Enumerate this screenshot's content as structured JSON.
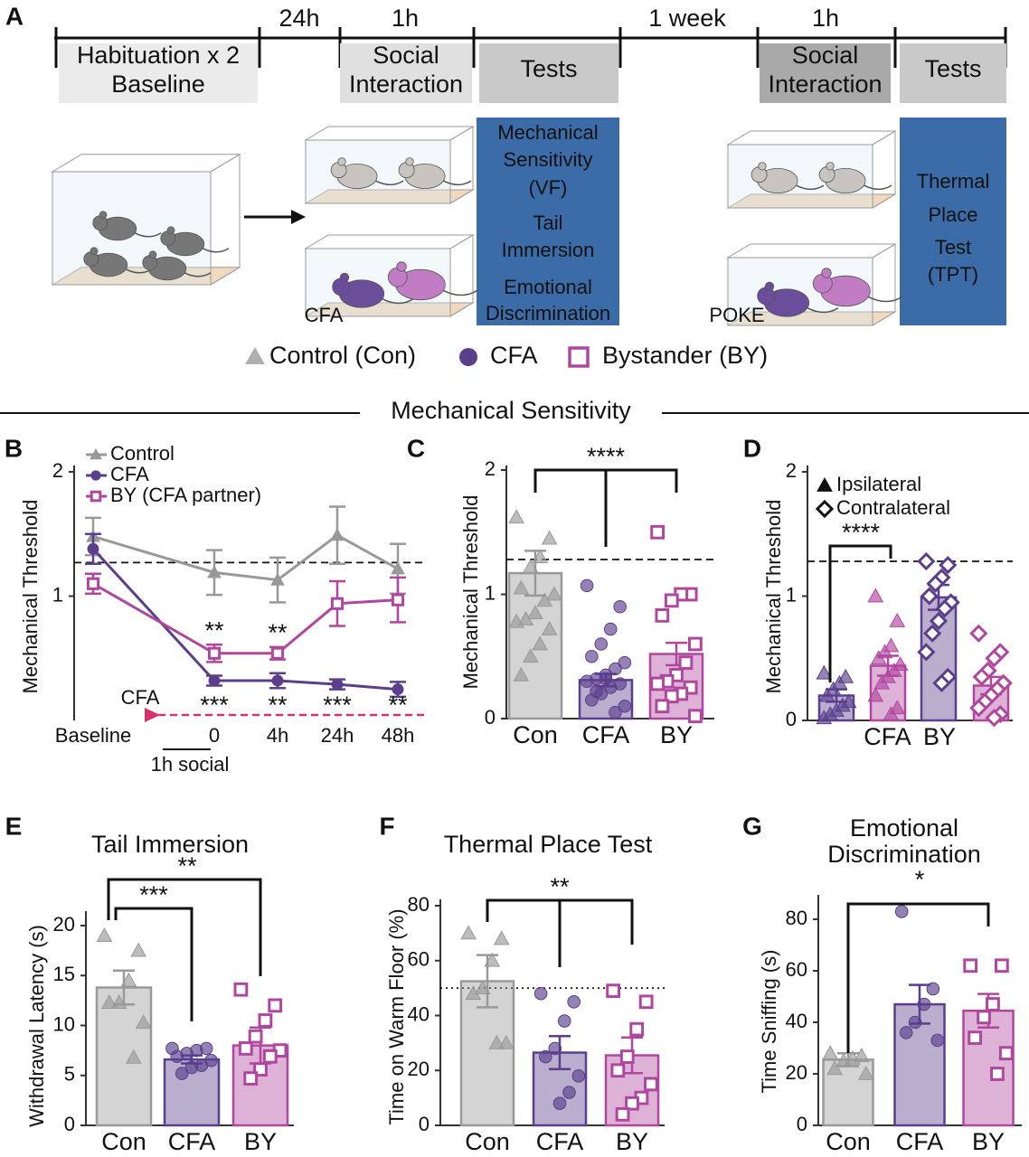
{
  "panel_a": {
    "label": "A",
    "intervals": [
      "24h",
      "1h",
      "1 week",
      "1h"
    ],
    "phases": [
      [
        "Habituation x 2",
        "Baseline"
      ],
      [
        "Social",
        "Interaction"
      ],
      [
        "Tests"
      ],
      [
        "Social",
        "Interaction"
      ],
      [
        "Tests"
      ]
    ],
    "tests_1": [
      "Mechanical",
      "Sensitivity",
      "(VF)",
      "Tail",
      "Immersion",
      "Emotional",
      "Discrimination"
    ],
    "tests_2": [
      "Thermal",
      "Place",
      "Test",
      "(TPT)"
    ],
    "cage_labels": [
      "CFA",
      "POKE"
    ],
    "legend": [
      "Control (Con)",
      "CFA",
      "Bystander (BY)"
    ]
  },
  "section_title": "Mechanical Sensitivity",
  "chart_data": [
    {
      "panel": "B",
      "type": "line",
      "ylabel": "Mechanical Threshold",
      "categories": [
        "Baseline",
        "0",
        "4h",
        "24h",
        "48h"
      ],
      "ylim": [
        0,
        2
      ],
      "yticks": [
        1,
        2
      ],
      "reference_line": 1.27,
      "injection_label": "CFA",
      "social_label": "1h social",
      "series": [
        {
          "name": "Control",
          "color": "#999999",
          "marker": "triangle",
          "values": [
            1.48,
            1.19,
            1.13,
            1.49,
            1.22
          ],
          "errors": [
            0.15,
            0.18,
            0.18,
            0.23,
            0.2
          ]
        },
        {
          "name": "CFA",
          "color": "#5b3f8c",
          "marker": "circle",
          "values": [
            1.38,
            0.32,
            0.32,
            0.29,
            0.25
          ],
          "errors": [
            0.12,
            0.04,
            0.06,
            0.04,
            0.06
          ],
          "stars": [
            null,
            "***",
            "**",
            "***",
            "**"
          ]
        },
        {
          "name": "BY (CFA partner)",
          "color": "#b0479f",
          "marker": "square",
          "values": [
            1.1,
            0.54,
            0.54,
            0.94,
            0.97
          ],
          "errors": [
            0.08,
            0.07,
            0.05,
            0.18,
            0.18
          ],
          "stars": [
            null,
            "**",
            "**",
            null,
            null
          ]
        }
      ]
    },
    {
      "panel": "C",
      "type": "bar",
      "ylabel": "Mechanical Threshold",
      "categories": [
        "Con",
        "CFA",
        "BY"
      ],
      "colors": [
        "#999999",
        "#5b3f8c",
        "#b0479f"
      ],
      "markers": [
        "triangle",
        "circle",
        "square"
      ],
      "values": [
        1.17,
        0.31,
        0.52
      ],
      "errors": [
        0.18,
        0.05,
        0.09
      ],
      "points": [
        [
          1.62,
          1.45,
          1.3,
          1.22,
          1.05,
          1.0,
          0.95,
          0.85,
          0.8,
          0.78,
          0.72,
          0.6,
          0.5,
          0.35
        ],
        [
          1.07,
          0.9,
          0.72,
          0.6,
          0.5,
          0.45,
          0.4,
          0.35,
          0.32,
          0.3,
          0.28,
          0.25,
          0.2,
          0.15,
          0.1,
          0.05,
          0.32,
          0.22
        ],
        [
          1.5,
          1.0,
          1.0,
          0.95,
          0.83,
          0.6,
          0.45,
          0.35,
          0.3,
          0.28,
          0.25,
          0.2,
          0.18,
          0.1,
          0.02
        ]
      ],
      "ylim": [
        0,
        2
      ],
      "yticks": [
        0,
        1,
        2
      ],
      "reference_line": 1.28,
      "significance": [
        "****"
      ]
    },
    {
      "panel": "D",
      "type": "grouped_bar",
      "ylabel": "Mechanical Threshold",
      "categories": [
        "CFA",
        "BY"
      ],
      "colors": [
        "#5b3f8c",
        "#b0479f"
      ],
      "series": [
        {
          "name": "Ipsilateral",
          "marker": "triangle",
          "values": [
            0.2,
            0.44
          ],
          "errors": [
            0.05,
            0.08
          ],
          "points": [
            [
              0.38,
              0.35,
              0.3,
              0.25,
              0.2,
              0.15,
              0.12,
              0.08,
              0.05,
              0.02
            ],
            [
              1.0,
              0.8,
              0.6,
              0.55,
              0.5,
              0.45,
              0.4,
              0.35,
              0.3,
              0.2,
              0.1,
              0.05
            ]
          ]
        },
        {
          "name": "Contralateral",
          "marker": "diamond",
          "values": [
            0.99,
            0.28
          ],
          "errors": [
            0.1,
            0.07
          ],
          "points": [
            [
              1.28,
              1.25,
              1.15,
              1.1,
              1.0,
              0.95,
              0.9,
              0.8,
              0.7,
              0.55,
              0.35,
              0.3
            ],
            [
              0.7,
              0.55,
              0.5,
              0.4,
              0.35,
              0.3,
              0.25,
              0.2,
              0.15,
              0.1,
              0.05,
              0.02
            ]
          ]
        }
      ],
      "ylim": [
        0,
        2
      ],
      "yticks": [
        0,
        1,
        2
      ],
      "reference_line": 1.28,
      "significance": [
        "****"
      ]
    },
    {
      "panel": "E",
      "type": "bar",
      "title": [
        "Tail Immersion"
      ],
      "ylabel": "Withdrawal Latency (s)",
      "categories": [
        "Con",
        "CFA",
        "BY"
      ],
      "colors": [
        "#999999",
        "#5b3f8c",
        "#b0479f"
      ],
      "markers": [
        "triangle",
        "circle",
        "square"
      ],
      "values": [
        13.8,
        6.6,
        8.0
      ],
      "errors": [
        1.7,
        0.4,
        1.8
      ],
      "points": [
        [
          19,
          17.5,
          14.5,
          12.3,
          12.3,
          10.3,
          6.8
        ],
        [
          7.7,
          7.7,
          7.5,
          7.2,
          6.9,
          6.5,
          6.0,
          5.8,
          5.2
        ],
        [
          13.6,
          12,
          10.5,
          8.9,
          7.7,
          7.5,
          6.9,
          5.6,
          4.7
        ]
      ],
      "ylim": [
        0,
        20
      ],
      "yticks": [
        0,
        5,
        10,
        15,
        20
      ],
      "significance": [
        "***",
        "**"
      ]
    },
    {
      "panel": "F",
      "type": "bar",
      "title": [
        "Thermal Place Test"
      ],
      "ylabel": "Time on Warm Floor (%)",
      "categories": [
        "Con",
        "CFA",
        "BY"
      ],
      "colors": [
        "#999999",
        "#5b3f8c",
        "#b0479f"
      ],
      "markers": [
        "triangle",
        "circle",
        "square"
      ],
      "values": [
        52.5,
        26.5,
        25.5
      ],
      "errors": [
        9.5,
        6,
        6.5
      ],
      "points": [
        [
          70,
          68,
          60,
          50,
          48,
          30,
          30
        ],
        [
          48,
          45,
          38,
          28,
          25,
          18,
          12,
          8
        ],
        [
          49,
          45,
          35,
          25,
          20,
          15,
          10,
          8,
          4
        ]
      ],
      "ylim": [
        0,
        80
      ],
      "yticks": [
        0,
        20,
        40,
        60,
        80
      ],
      "reference_line": 50,
      "reference_style": "dotted",
      "significance": [
        "**"
      ]
    },
    {
      "panel": "G",
      "type": "bar",
      "title": [
        "Emotional",
        "Discrimination"
      ],
      "ylabel": "Time Sniffing (s)",
      "categories": [
        "Con",
        "CFA",
        "BY"
      ],
      "colors": [
        "#999999",
        "#5b3f8c",
        "#b0479f"
      ],
      "markers": [
        "triangle",
        "circle",
        "square"
      ],
      "values": [
        25.5,
        47,
        44.5
      ],
      "errors": [
        2.5,
        7.5,
        6.5
      ],
      "points": [
        [
          28,
          27,
          26,
          25,
          22,
          20
        ],
        [
          83,
          53,
          47,
          40,
          36,
          33
        ],
        [
          62,
          62,
          47,
          42,
          34,
          28,
          20
        ]
      ],
      "ylim": [
        0,
        80
      ],
      "yticks": [
        0,
        20,
        40,
        60,
        80
      ],
      "significance": [
        "*"
      ]
    }
  ]
}
